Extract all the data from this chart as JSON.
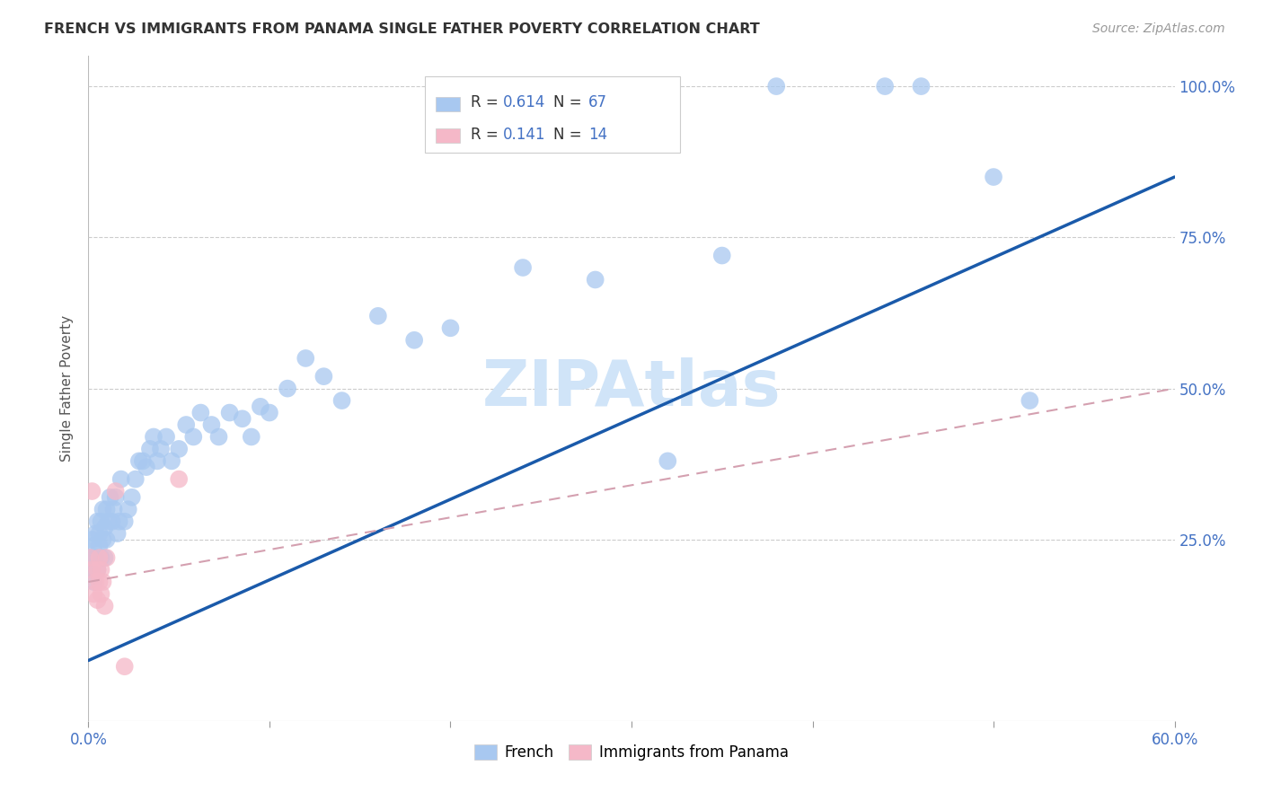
{
  "title": "FRENCH VS IMMIGRANTS FROM PANAMA SINGLE FATHER POVERTY CORRELATION CHART",
  "source": "Source: ZipAtlas.com",
  "ylabel_ticks": [
    "100.0%",
    "75.0%",
    "50.0%",
    "25.0%"
  ],
  "ylabel_vals": [
    1.0,
    0.75,
    0.5,
    0.25
  ],
  "ylabel_label": "Single Father Poverty",
  "xlim": [
    0.0,
    0.6
  ],
  "ylim": [
    -0.05,
    1.05
  ],
  "french_R": 0.614,
  "french_N": 67,
  "panama_R": 0.141,
  "panama_N": 14,
  "french_color": "#a8c8f0",
  "panama_color": "#f5b8c8",
  "french_line_color": "#1a5aaa",
  "panama_line_color": "#d4a0b0",
  "watermark_text": "ZIPAtlas",
  "watermark_color": "#d0e4f8",
  "french_line_x0": 0.0,
  "french_line_y0": 0.05,
  "french_line_x1": 0.6,
  "french_line_y1": 0.85,
  "panama_line_x0": 0.0,
  "panama_line_y0": 0.18,
  "panama_line_x1": 0.6,
  "panama_line_y1": 0.5,
  "french_x": [
    0.001,
    0.002,
    0.002,
    0.003,
    0.003,
    0.004,
    0.004,
    0.005,
    0.005,
    0.006,
    0.006,
    0.007,
    0.007,
    0.008,
    0.008,
    0.009,
    0.009,
    0.01,
    0.01,
    0.011,
    0.012,
    0.013,
    0.014,
    0.015,
    0.016,
    0.017,
    0.018,
    0.02,
    0.022,
    0.024,
    0.026,
    0.028,
    0.03,
    0.032,
    0.034,
    0.036,
    0.038,
    0.04,
    0.043,
    0.046,
    0.05,
    0.054,
    0.058,
    0.062,
    0.068,
    0.072,
    0.078,
    0.085,
    0.09,
    0.095,
    0.1,
    0.11,
    0.12,
    0.13,
    0.14,
    0.16,
    0.18,
    0.2,
    0.24,
    0.28,
    0.32,
    0.35,
    0.38,
    0.44,
    0.46,
    0.5,
    0.52
  ],
  "french_y": [
    0.22,
    0.25,
    0.2,
    0.18,
    0.24,
    0.22,
    0.26,
    0.2,
    0.28,
    0.24,
    0.26,
    0.22,
    0.28,
    0.25,
    0.3,
    0.22,
    0.27,
    0.25,
    0.3,
    0.28,
    0.32,
    0.28,
    0.3,
    0.32,
    0.26,
    0.28,
    0.35,
    0.28,
    0.3,
    0.32,
    0.35,
    0.38,
    0.38,
    0.37,
    0.4,
    0.42,
    0.38,
    0.4,
    0.42,
    0.38,
    0.4,
    0.44,
    0.42,
    0.46,
    0.44,
    0.42,
    0.46,
    0.45,
    0.42,
    0.47,
    0.46,
    0.5,
    0.55,
    0.52,
    0.48,
    0.62,
    0.58,
    0.6,
    0.7,
    0.68,
    0.38,
    0.72,
    1.0,
    1.0,
    1.0,
    0.85,
    0.48
  ],
  "panama_x": [
    0.001,
    0.002,
    0.003,
    0.004,
    0.005,
    0.005,
    0.006,
    0.006,
    0.007,
    0.007,
    0.008,
    0.009,
    0.01,
    0.05
  ],
  "panama_y": [
    0.22,
    0.2,
    0.16,
    0.18,
    0.2,
    0.15,
    0.22,
    0.18,
    0.2,
    0.16,
    0.18,
    0.14,
    0.22,
    0.35
  ],
  "panama_outlier_x": [
    0.01
  ],
  "panama_outlier_y": [
    0.33
  ],
  "panama_low_x": [
    0.02
  ],
  "panama_low_y": [
    0.04
  ]
}
